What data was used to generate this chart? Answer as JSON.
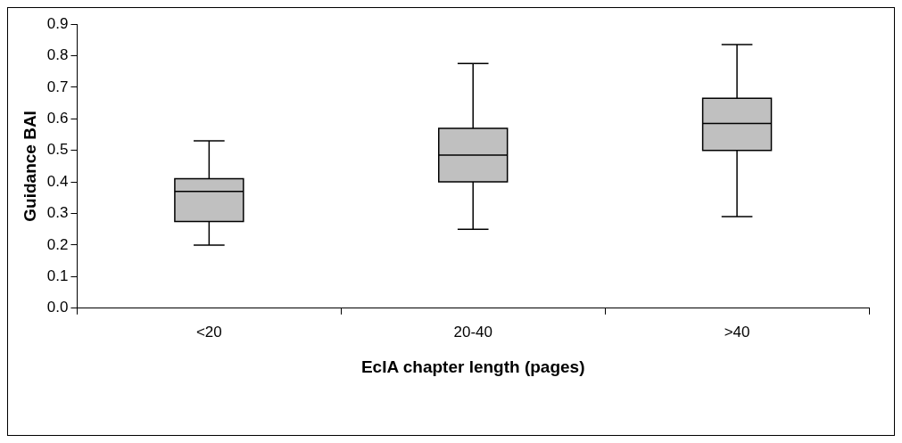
{
  "chart_data": {
    "type": "box",
    "xlabel": "EcIA chapter length (pages)",
    "ylabel": "Guidance BAI",
    "categories": [
      "<20",
      "20-40",
      ">40"
    ],
    "color": "#c0c0c0",
    "grid": false,
    "legend": false,
    "boxes": [
      {
        "low": 0.2,
        "q1": 0.275,
        "median": 0.37,
        "q3": 0.41,
        "high": 0.53
      },
      {
        "low": 0.25,
        "q1": 0.4,
        "median": 0.485,
        "q3": 0.57,
        "high": 0.775
      },
      {
        "low": 0.29,
        "q1": 0.5,
        "median": 0.585,
        "q3": 0.665,
        "high": 0.835
      }
    ],
    "ylim": [
      0,
      0.9
    ],
    "yticks": [
      {
        "value": 0,
        "label": "0.0"
      },
      {
        "value": 0.1,
        "label": "0.1"
      },
      {
        "value": 0.2,
        "label": "0.2"
      },
      {
        "value": 0.3,
        "label": "0.3"
      },
      {
        "value": 0.4,
        "label": "0.4"
      },
      {
        "value": 0.5,
        "label": "0.5"
      },
      {
        "value": 0.6,
        "label": "0.6"
      },
      {
        "value": 0.7,
        "label": "0.7"
      },
      {
        "value": 0.8,
        "label": "0.8"
      },
      {
        "value": 0.9,
        "label": "0.9"
      }
    ]
  }
}
